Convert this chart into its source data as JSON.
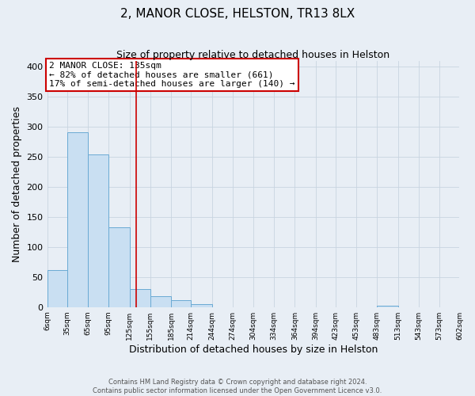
{
  "title": "2, MANOR CLOSE, HELSTON, TR13 8LX",
  "subtitle": "Size of property relative to detached houses in Helston",
  "xlabel": "Distribution of detached houses by size in Helston",
  "ylabel": "Number of detached properties",
  "bin_edges": [
    6,
    35,
    65,
    95,
    125,
    155,
    185,
    214,
    244,
    274,
    304,
    334,
    364,
    394,
    423,
    453,
    483,
    513,
    543,
    573,
    602
  ],
  "bin_heights": [
    62,
    291,
    254,
    133,
    30,
    18,
    12,
    5,
    0,
    0,
    0,
    0,
    0,
    0,
    0,
    0,
    2,
    0,
    0,
    0
  ],
  "bar_facecolor": "#c9dff2",
  "bar_edgecolor": "#6aaad4",
  "grid_color": "#c8d4e0",
  "background_color": "#e8eef5",
  "vline_x": 135,
  "vline_color": "#cc0000",
  "annotation_text": "2 MANOR CLOSE: 135sqm\n← 82% of detached houses are smaller (661)\n17% of semi-detached houses are larger (140) →",
  "annotation_box_facecolor": "white",
  "annotation_box_edgecolor": "#cc0000",
  "ylim": [
    0,
    410
  ],
  "yticks": [
    0,
    50,
    100,
    150,
    200,
    250,
    300,
    350,
    400
  ],
  "tick_labels": [
    "6sqm",
    "35sqm",
    "65sqm",
    "95sqm",
    "125sqm",
    "155sqm",
    "185sqm",
    "214sqm",
    "244sqm",
    "274sqm",
    "304sqm",
    "334sqm",
    "364sqm",
    "394sqm",
    "423sqm",
    "453sqm",
    "483sqm",
    "513sqm",
    "543sqm",
    "573sqm",
    "602sqm"
  ],
  "footer_line1": "Contains HM Land Registry data © Crown copyright and database right 2024.",
  "footer_line2": "Contains public sector information licensed under the Open Government Licence v3.0."
}
